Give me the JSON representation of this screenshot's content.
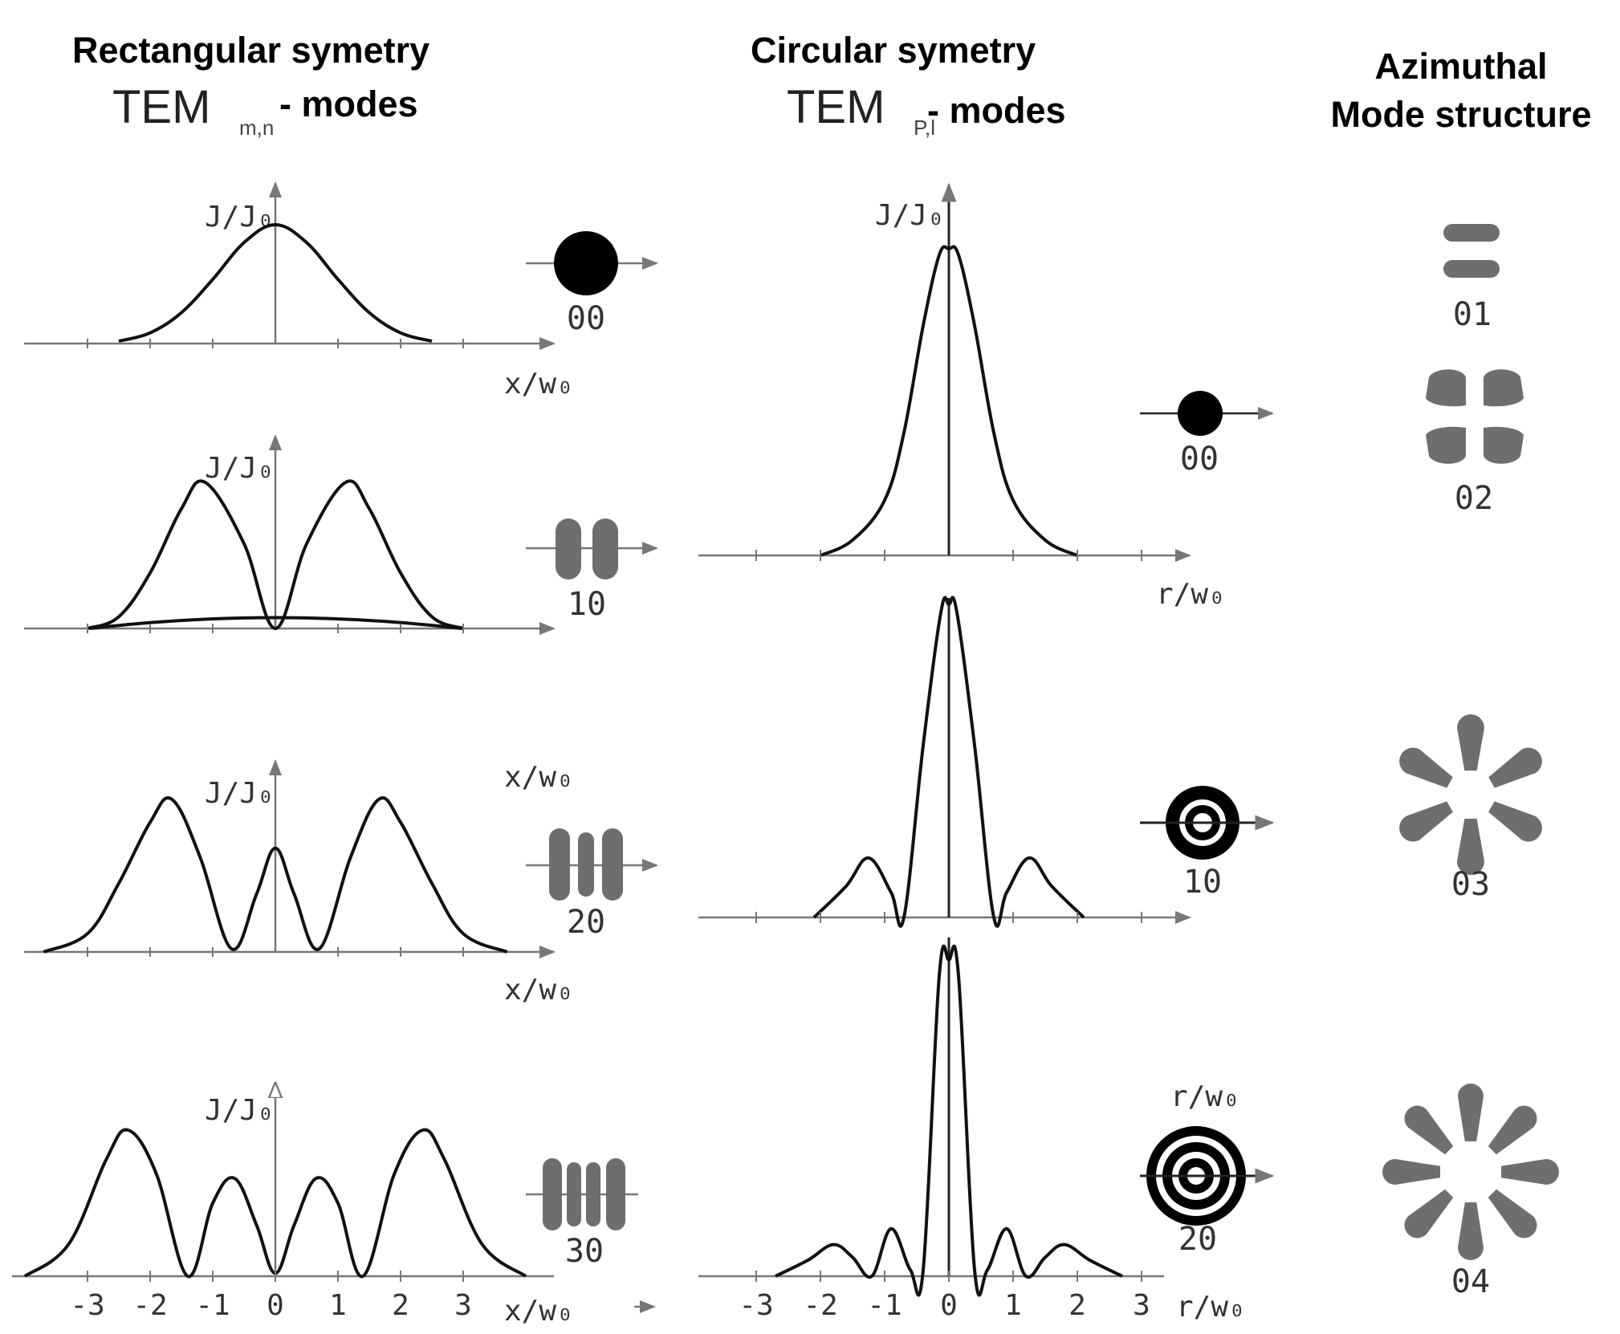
{
  "columns": {
    "rect": {
      "title": "Rectangular symetry",
      "tem": "TEM",
      "tem_sub": "m,n",
      "suffix": "-  modes"
    },
    "circ": {
      "title": "Circular symetry",
      "tem": "TEM",
      "tem_sub": "P,l",
      "suffix": "-  modes"
    },
    "azim": {
      "title_line1": "Azimuthal",
      "title_line2": "Mode structure"
    }
  },
  "labels": {
    "intensity": "J/J₀",
    "x_axis": "x/w₀",
    "r_axis": "r/w₀"
  },
  "rect_modes": [
    "00",
    "10",
    "20",
    "30"
  ],
  "circ_modes": [
    "00",
    "10",
    "20"
  ],
  "azim_modes": [
    "01",
    "02",
    "03",
    "04"
  ],
  "ticks_x": [
    "-3",
    "-2",
    "-1",
    "0",
    "1",
    "2",
    "3"
  ],
  "colors": {
    "curve": "#111111",
    "axis": "#777777",
    "lobe": "#6e6e6e"
  },
  "chart_data": [
    {
      "type": "line",
      "name": "rect-00",
      "xlabel": "x/w₀",
      "ylabel": "J/J₀",
      "mode": "00",
      "xlim": [
        -4,
        4
      ],
      "ylim": [
        0,
        1
      ],
      "x": [
        -2.5,
        -2,
        -1.5,
        -1,
        -0.5,
        0,
        0.5,
        1,
        1.5,
        2,
        2.5
      ],
      "y": [
        0.02,
        0.09,
        0.26,
        0.54,
        0.85,
        1.0,
        0.85,
        0.54,
        0.26,
        0.09,
        0.02
      ]
    },
    {
      "type": "line",
      "name": "rect-10",
      "xlabel": "x/w₀",
      "ylabel": "J/J₀",
      "mode": "10",
      "xlim": [
        -4,
        4
      ],
      "ylim": [
        0,
        1
      ],
      "x": [
        -3,
        -2.5,
        -2,
        -1.5,
        -1.12,
        -0.5,
        0,
        0.5,
        1.12,
        1.5,
        2,
        2.5,
        3
      ],
      "y": [
        0.0,
        0.08,
        0.38,
        0.82,
        1.0,
        0.58,
        0.0,
        0.58,
        1.0,
        0.82,
        0.38,
        0.08,
        0.0
      ]
    },
    {
      "type": "line",
      "name": "rect-20",
      "xlabel": "x/w₀",
      "ylabel": "J/J₀",
      "mode": "20",
      "xlim": [
        -4,
        4
      ],
      "ylim": [
        0,
        1
      ],
      "x": [
        -3.7,
        -3,
        -2.5,
        -2,
        -1.65,
        -1.2,
        -0.7,
        -0.3,
        0,
        0.3,
        0.7,
        1.2,
        1.65,
        2,
        2.5,
        3,
        3.7
      ],
      "y": [
        0.0,
        0.12,
        0.45,
        0.85,
        1.0,
        0.62,
        0.02,
        0.38,
        0.68,
        0.38,
        0.02,
        0.62,
        1.0,
        0.85,
        0.45,
        0.12,
        0.0
      ]
    },
    {
      "type": "line",
      "name": "rect-30",
      "xlabel": "x/w₀",
      "ylabel": "J/J₀",
      "mode": "30",
      "xlim": [
        -4,
        4
      ],
      "ylim": [
        0,
        1
      ],
      "x": [
        -4,
        -3.3,
        -2.7,
        -2.35,
        -1.9,
        -1.4,
        -1.0,
        -0.65,
        -0.3,
        0,
        0.3,
        0.65,
        1.0,
        1.4,
        1.9,
        2.35,
        2.7,
        3.3,
        4
      ],
      "y": [
        0.0,
        0.22,
        0.8,
        1.0,
        0.7,
        0.0,
        0.5,
        0.67,
        0.35,
        0.02,
        0.35,
        0.67,
        0.5,
        0.0,
        0.7,
        1.0,
        0.8,
        0.22,
        0.0
      ]
    },
    {
      "type": "line",
      "name": "circ-00",
      "xlabel": "r/w₀",
      "ylabel": "J/J₀",
      "mode": "00",
      "xlim": [
        -3,
        3
      ],
      "ylim": [
        0,
        1
      ],
      "x": [
        -2,
        -1.5,
        -1,
        -0.7,
        -0.4,
        -0.15,
        0,
        0.15,
        0.4,
        0.7,
        1,
        1.5,
        2
      ],
      "y": [
        0.0,
        0.05,
        0.18,
        0.4,
        0.75,
        0.98,
        1.0,
        0.98,
        0.75,
        0.4,
        0.18,
        0.05,
        0.0
      ]
    },
    {
      "type": "line",
      "name": "circ-10",
      "xlabel": "r/w₀",
      "ylabel": "J/J₀",
      "mode": "10",
      "xlim": [
        -3,
        3
      ],
      "ylim": [
        0,
        1
      ],
      "x": [
        -2.1,
        -1.6,
        -1.25,
        -0.9,
        -0.7,
        -0.4,
        -0.12,
        0,
        0.12,
        0.4,
        0.7,
        0.9,
        1.25,
        1.6,
        2.1
      ],
      "y": [
        0.0,
        0.1,
        0.19,
        0.08,
        0.0,
        0.55,
        0.98,
        1.0,
        0.98,
        0.55,
        0.0,
        0.08,
        0.19,
        0.1,
        0.0
      ]
    },
    {
      "type": "line",
      "name": "circ-20",
      "xlabel": "r/w₀",
      "ylabel": "J/J₀",
      "mode": "20",
      "xlim": [
        -3,
        3
      ],
      "ylim": [
        0,
        1
      ],
      "x": [
        -2.7,
        -2.2,
        -1.8,
        -1.5,
        -1.2,
        -0.9,
        -0.6,
        -0.4,
        -0.15,
        0,
        0.15,
        0.4,
        0.6,
        0.9,
        1.2,
        1.5,
        1.8,
        2.2,
        2.7
      ],
      "y": [
        0.0,
        0.05,
        0.1,
        0.06,
        0.0,
        0.15,
        0.02,
        0.02,
        0.95,
        1.0,
        0.95,
        0.02,
        0.02,
        0.15,
        0.0,
        0.06,
        0.1,
        0.05,
        0.0
      ]
    }
  ]
}
